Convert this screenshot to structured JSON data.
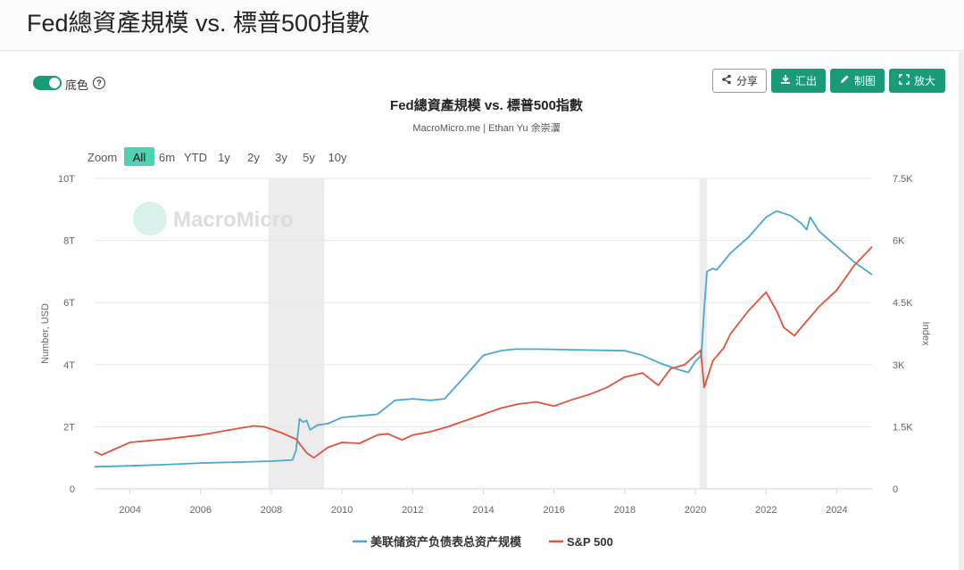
{
  "page": {
    "title": "Fed總資產規模 vs. 標普500指數"
  },
  "toolbar": {
    "toggle_label": "底色",
    "toggle_on": true,
    "share_label": "分享",
    "export_label": "汇出",
    "draw_label": "制图",
    "enlarge_label": "放大"
  },
  "colors": {
    "accent": "#1a9a78",
    "fed": "#4aa8cf",
    "sp": "#e0533a",
    "recession": "#ececec"
  },
  "chart_data": {
    "type": "line",
    "title": "Fed總資產規模 vs. 標普500指數",
    "subtitle": "MacroMicro.me | Ethan Yu 余崇瀷",
    "watermark": "MacroMicro",
    "zoom": {
      "label": "Zoom",
      "options": [
        "All",
        "6m",
        "YTD",
        "1y",
        "2y",
        "3y",
        "5y",
        "10y"
      ],
      "selected": "All"
    },
    "x_range": [
      2003.0,
      2025.0
    ],
    "x_ticks": [
      "2004",
      "2006",
      "2008",
      "2010",
      "2012",
      "2014",
      "2016",
      "2018",
      "2020",
      "2022",
      "2024"
    ],
    "y_left": {
      "label": "Number, USD",
      "range": [
        0,
        10
      ],
      "ticks": [
        "0",
        "2T",
        "4T",
        "6T",
        "8T",
        "10T"
      ]
    },
    "y_right": {
      "label": "Index",
      "range": [
        0,
        7500
      ],
      "ticks": [
        "0",
        "1.5K",
        "3K",
        "4.5K",
        "6K",
        "7.5K"
      ]
    },
    "recessions": [
      [
        2007.92,
        2009.5
      ],
      [
        2020.12,
        2020.33
      ]
    ],
    "grid": true,
    "legend_position": "bottom",
    "series": [
      {
        "name": "美联储资产负债表总资产规模",
        "axis": "left",
        "unit": "T USD",
        "x": [
          2003.0,
          2004.0,
          2005.0,
          2006.0,
          2007.0,
          2008.0,
          2008.6,
          2008.7,
          2008.8,
          2008.9,
          2009.0,
          2009.1,
          2009.3,
          2009.6,
          2010.0,
          2010.5,
          2011.0,
          2011.5,
          2012.0,
          2012.5,
          2012.9,
          2013.5,
          2014.0,
          2014.5,
          2014.9,
          2015.5,
          2016.5,
          2017.5,
          2018.0,
          2018.5,
          2019.0,
          2019.5,
          2019.8,
          2020.0,
          2020.17,
          2020.25,
          2020.33,
          2020.5,
          2020.6,
          2021.0,
          2021.5,
          2022.0,
          2022.3,
          2022.7,
          2023.0,
          2023.15,
          2023.25,
          2023.5,
          2024.0,
          2024.5,
          2025.0
        ],
        "y": [
          0.71,
          0.74,
          0.78,
          0.83,
          0.86,
          0.89,
          0.93,
          1.25,
          2.25,
          2.15,
          2.2,
          1.9,
          2.05,
          2.1,
          2.3,
          2.35,
          2.4,
          2.85,
          2.9,
          2.85,
          2.9,
          3.65,
          4.3,
          4.45,
          4.5,
          4.5,
          4.48,
          4.46,
          4.45,
          4.3,
          4.05,
          3.85,
          3.75,
          4.1,
          4.3,
          5.8,
          7.0,
          7.1,
          7.05,
          7.6,
          8.1,
          8.75,
          8.95,
          8.8,
          8.55,
          8.35,
          8.75,
          8.3,
          7.8,
          7.3,
          6.9
        ]
      },
      {
        "name": "S&P 500",
        "axis": "right",
        "unit": "Index",
        "x": [
          2003.0,
          2003.2,
          2004.0,
          2005.0,
          2006.0,
          2007.0,
          2007.5,
          2007.8,
          2008.3,
          2008.7,
          2009.0,
          2009.2,
          2009.6,
          2010.0,
          2010.5,
          2011.0,
          2011.3,
          2011.7,
          2012.0,
          2012.5,
          2013.0,
          2013.5,
          2014.0,
          2014.5,
          2015.0,
          2015.5,
          2016.0,
          2016.5,
          2017.0,
          2017.5,
          2018.0,
          2018.5,
          2018.95,
          2019.3,
          2019.7,
          2020.0,
          2020.15,
          2020.25,
          2020.5,
          2020.8,
          2021.0,
          2021.5,
          2022.0,
          2022.3,
          2022.5,
          2022.8,
          2023.0,
          2023.5,
          2024.0,
          2024.5,
          2025.0
        ],
        "y": [
          900,
          820,
          1120,
          1200,
          1300,
          1450,
          1520,
          1500,
          1350,
          1200,
          870,
          750,
          1000,
          1120,
          1100,
          1300,
          1330,
          1180,
          1300,
          1380,
          1500,
          1650,
          1800,
          1950,
          2050,
          2100,
          2000,
          2150,
          2280,
          2450,
          2700,
          2800,
          2500,
          2900,
          3000,
          3230,
          3350,
          2450,
          3100,
          3400,
          3750,
          4300,
          4750,
          4300,
          3900,
          3700,
          3900,
          4400,
          4800,
          5400,
          5850
        ]
      }
    ]
  }
}
